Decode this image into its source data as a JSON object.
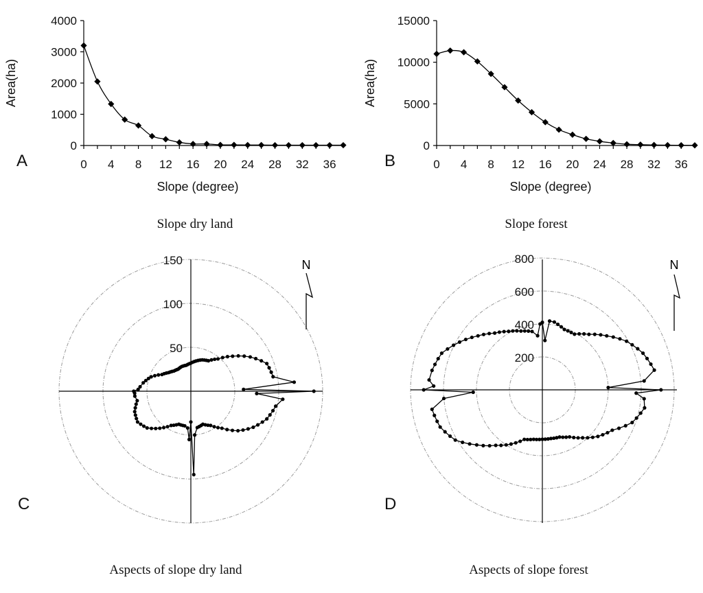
{
  "chart_data": [
    {
      "panel": "A",
      "type": "line",
      "title": "Slope dry land",
      "xlabel": "Slope (degree)",
      "ylabel": "Area(ha)",
      "xlim": [
        0,
        38
      ],
      "ylim": [
        0,
        4000
      ],
      "yticks": [
        0,
        1000,
        2000,
        3000,
        4000
      ],
      "ytick_labels": [
        "0",
        "1000",
        "2000",
        "3000",
        "4000"
      ],
      "xticks": [
        0,
        4,
        8,
        12,
        16,
        20,
        24,
        28,
        32,
        36
      ],
      "xtick_labels": [
        "0",
        "4",
        "8",
        "12",
        "16",
        "20",
        "24",
        "28",
        "32",
        "36"
      ],
      "x": [
        0,
        2,
        4,
        6,
        8,
        10,
        12,
        14,
        16,
        18,
        20,
        22,
        24,
        26,
        28,
        30,
        32,
        34,
        36,
        38
      ],
      "y": [
        3200,
        2050,
        1330,
        830,
        640,
        300,
        200,
        100,
        50,
        50,
        20,
        20,
        15,
        15,
        10,
        10,
        10,
        10,
        10,
        10
      ]
    },
    {
      "panel": "B",
      "type": "line",
      "title": "Slope forest",
      "xlabel": "Slope (degree)",
      "ylabel": "Area(ha)",
      "xlim": [
        0,
        38
      ],
      "ylim": [
        0,
        15000
      ],
      "yticks": [
        0,
        5000,
        10000,
        15000
      ],
      "ytick_labels": [
        "0",
        "5000",
        "10000",
        "15000"
      ],
      "xticks": [
        0,
        4,
        8,
        12,
        16,
        20,
        24,
        28,
        32,
        36
      ],
      "xtick_labels": [
        "0",
        "4",
        "8",
        "12",
        "16",
        "20",
        "24",
        "28",
        "32",
        "36"
      ],
      "x": [
        0,
        2,
        4,
        6,
        8,
        10,
        12,
        14,
        16,
        18,
        20,
        22,
        24,
        26,
        28,
        30,
        32,
        34,
        36,
        38
      ],
      "y": [
        11000,
        11400,
        11200,
        10100,
        8600,
        7000,
        5400,
        4000,
        2800,
        1900,
        1300,
        800,
        500,
        300,
        150,
        100,
        60,
        40,
        30,
        20
      ]
    },
    {
      "panel": "C",
      "type": "polar",
      "title": "Aspects of slope dry land",
      "rmax": 150,
      "rings": [
        50,
        100,
        150
      ],
      "ring_labels": [
        "50",
        "100",
        "150"
      ],
      "north_label": "N",
      "angle_deg": [
        0,
        10,
        20,
        30,
        40,
        50,
        60,
        70,
        80,
        85,
        88,
        90,
        92,
        95,
        100,
        110,
        120,
        130,
        140,
        150,
        160,
        170,
        175,
        178,
        180,
        182,
        185,
        190,
        200,
        210,
        220,
        230,
        240,
        250,
        260,
        265,
        268,
        270,
        272,
        275,
        280,
        290,
        300,
        310,
        320,
        330,
        340,
        350
      ],
      "radius": [
        32,
        35,
        38,
        40,
        48,
        62,
        78,
        92,
        95,
        118,
        60,
        140,
        75,
        105,
        98,
        92,
        82,
        70,
        55,
        45,
        40,
        42,
        50,
        95,
        35,
        55,
        42,
        40,
        40,
        45,
        55,
        65,
        70,
        68,
        62,
        64,
        64,
        65,
        60,
        58,
        55,
        48,
        38,
        33,
        30,
        29,
        30,
        30
      ]
    },
    {
      "panel": "D",
      "type": "polar",
      "title": "Aspects of slope forest",
      "rmax": 800,
      "rings": [
        200,
        400,
        600,
        800
      ],
      "ring_labels": [
        "200",
        "400",
        "600",
        "800"
      ],
      "north_label": "N",
      "angle_deg": [
        0,
        3,
        6,
        10,
        20,
        30,
        40,
        50,
        60,
        70,
        80,
        85,
        88,
        90,
        92,
        95,
        100,
        110,
        120,
        130,
        140,
        150,
        160,
        170,
        180,
        190,
        200,
        210,
        220,
        230,
        240,
        250,
        260,
        265,
        268,
        270,
        272,
        275,
        280,
        290,
        300,
        310,
        320,
        330,
        340,
        350,
        355,
        358
      ],
      "radius": [
        410,
        300,
        420,
        418,
        390,
        390,
        440,
        510,
        590,
        650,
        690,
        620,
        400,
        720,
        570,
        620,
        630,
        580,
        490,
        440,
        380,
        330,
        305,
        300,
        300,
        305,
        320,
        380,
        440,
        520,
        610,
        660,
        680,
        600,
        420,
        720,
        660,
        690,
        680,
        650,
        580,
        510,
        450,
        410,
        380,
        360,
        330,
        400
      ]
    }
  ],
  "panel_letters": [
    "A",
    "B",
    "C",
    "D"
  ]
}
